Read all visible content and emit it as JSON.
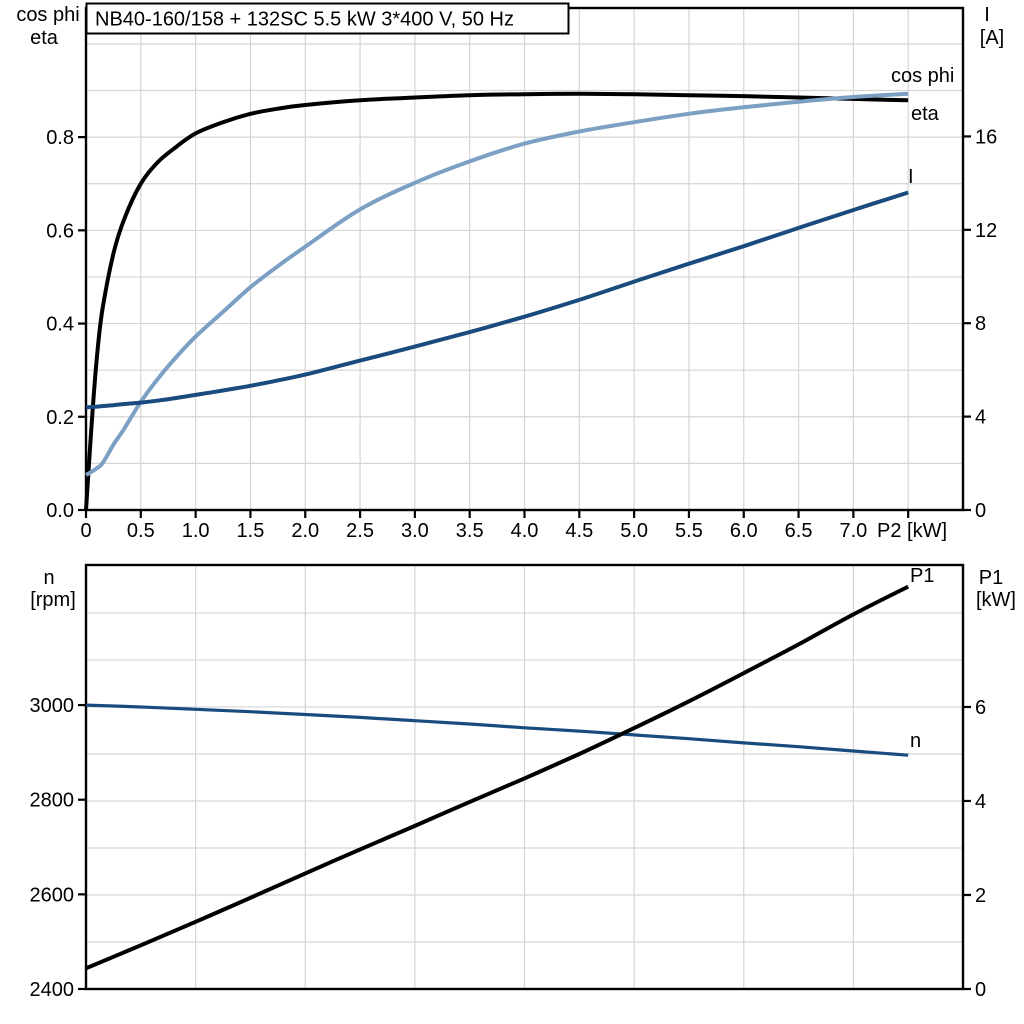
{
  "title": "NB40-160/158 + 132SC   5.5 kW   3*400 V, 50 Hz",
  "colors": {
    "black": "#000000",
    "light_blue": "#7BA0C4",
    "dark_blue": "#1A4B7E",
    "grid": "#D5D5D5",
    "frame": "#000000",
    "background": "#FFFFFF"
  },
  "chart_data": [
    {
      "type": "line",
      "title": "NB40-160/158 + 132SC   5.5 kW   3*400 V, 50 Hz",
      "xlabel": "P2 [kW]",
      "ylabel_left_line1": "cos phi",
      "ylabel_left_line2": "eta",
      "ylabel_right_line1": "I",
      "ylabel_right_line2": "[A]",
      "xlim": [
        0,
        8
      ],
      "ylim_left": [
        0,
        1.077
      ],
      "ylim_right": [
        0,
        21.5
      ],
      "grid": true,
      "grid_x_step": 0.5,
      "grid_y_left_step": 0.1,
      "x_ticks": {
        "values": [
          0,
          0.5,
          1,
          1.5,
          2,
          2.5,
          3,
          3.5,
          4,
          4.5,
          5,
          5.5,
          6,
          6.5,
          7,
          7.5
        ],
        "labels": [
          "0",
          "0.5",
          "1.0",
          "1.5",
          "2.0",
          "2.5",
          "3.0",
          "3.5",
          "4.0",
          "4.5",
          "5.0",
          "5.5",
          "6.0",
          "6.5",
          "7.0",
          ""
        ]
      },
      "y_ticks_left": {
        "values": [
          0,
          0.2,
          0.4,
          0.6,
          0.8
        ],
        "labels": [
          "0.0",
          "0.2",
          "0.4",
          "0.6",
          "0.8"
        ]
      },
      "y_ticks_right": {
        "values": [
          0,
          4,
          8,
          12,
          16
        ],
        "labels": [
          "0",
          "4",
          "8",
          "12",
          "16"
        ]
      },
      "x": [
        0,
        0.05,
        0.1,
        0.15,
        0.25,
        0.35,
        0.5,
        0.65,
        0.8,
        1.0,
        1.25,
        1.5,
        1.75,
        2.0,
        2.5,
        3.0,
        3.5,
        4.0,
        4.5,
        5.0,
        5.5,
        6.0,
        6.5,
        7.0,
        7.5
      ],
      "series": [
        {
          "id": "eta",
          "name": "eta",
          "axis": "left",
          "color_key": "black",
          "values": [
            0,
            0.18,
            0.33,
            0.43,
            0.55,
            0.625,
            0.7,
            0.745,
            0.775,
            0.808,
            0.832,
            0.85,
            0.861,
            0.869,
            0.879,
            0.885,
            0.89,
            0.892,
            0.893,
            0.892,
            0.89,
            0.888,
            0.885,
            0.882,
            0.879
          ]
        },
        {
          "id": "cos_phi",
          "name": "cos phi",
          "axis": "left",
          "color_key": "light_blue",
          "values": [
            0.075,
            0.082,
            0.09,
            0.1,
            0.14,
            0.175,
            0.232,
            0.28,
            0.322,
            0.372,
            0.425,
            0.478,
            0.523,
            0.565,
            0.645,
            0.702,
            0.748,
            0.786,
            0.812,
            0.832,
            0.85,
            0.864,
            0.876,
            0.886,
            0.893
          ]
        },
        {
          "id": "current",
          "name": "I",
          "axis": "right",
          "color_key": "dark_blue",
          "values": [
            4.4,
            4.41,
            4.43,
            4.45,
            4.49,
            4.54,
            4.6,
            4.68,
            4.78,
            4.93,
            5.12,
            5.32,
            5.55,
            5.8,
            6.4,
            7.0,
            7.62,
            8.28,
            9.0,
            9.78,
            10.55,
            11.3,
            12.08,
            12.85,
            13.6
          ]
        }
      ]
    },
    {
      "type": "line",
      "title": "",
      "xlabel": "",
      "ylabel_left_line1": "n",
      "ylabel_left_line2": "[rpm]",
      "ylabel_right_line1": "P1",
      "ylabel_right_line2": "[kW]",
      "xlim": [
        0,
        8
      ],
      "ylim_left": [
        2400,
        3296
      ],
      "ylim_right": [
        0,
        9.02
      ],
      "grid": true,
      "grid_x_step": 1,
      "grid_y_right_step": 1,
      "y_ticks_left": {
        "values": [
          2400,
          2600,
          2800,
          3000
        ],
        "labels": [
          "2400",
          "2600",
          "2800",
          "3000"
        ]
      },
      "y_ticks_right": {
        "values": [
          0,
          2,
          4,
          6
        ],
        "labels": [
          "0",
          "2",
          "4",
          "6"
        ]
      },
      "x": [
        0,
        0.5,
        1,
        1.5,
        2,
        2.5,
        3,
        3.5,
        4,
        4.5,
        5,
        5.5,
        6,
        6.5,
        7,
        7.5
      ],
      "series": [
        {
          "id": "n",
          "name": "n",
          "axis": "left",
          "color_key": "dark_blue",
          "values": [
            3000,
            2996,
            2991,
            2986,
            2980,
            2974,
            2967,
            2960,
            2952,
            2945,
            2937,
            2929,
            2920,
            2912,
            2903,
            2894
          ]
        },
        {
          "id": "p1",
          "name": "P1",
          "axis": "right",
          "color_key": "black",
          "values": [
            0.44,
            0.93,
            1.43,
            1.94,
            2.46,
            2.97,
            3.47,
            3.98,
            4.48,
            5.0,
            5.55,
            6.12,
            6.72,
            7.33,
            7.97,
            8.56
          ]
        }
      ]
    }
  ]
}
